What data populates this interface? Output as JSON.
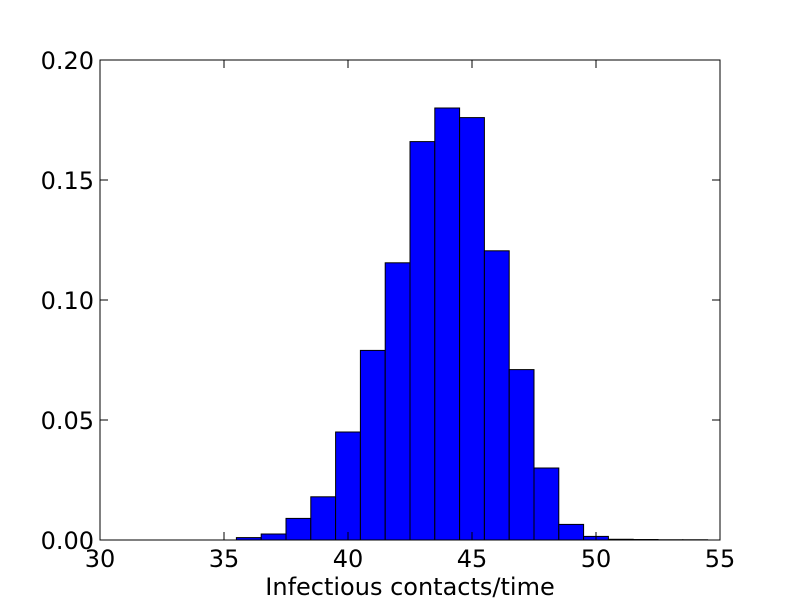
{
  "chart_data": {
    "type": "bar",
    "title": "",
    "xlabel": "Infectious contacts/time",
    "ylabel": "",
    "xlim": [
      30,
      55
    ],
    "ylim": [
      0,
      0.2
    ],
    "x_ticks": [
      "30",
      "35",
      "40",
      "45",
      "50",
      "55"
    ],
    "y_ticks": [
      "0.00",
      "0.05",
      "0.10",
      "0.15",
      "0.20"
    ],
    "bar_color": "#0000ff",
    "edge_color": "#000000",
    "grid": false,
    "bins": [
      {
        "x0": 35.5,
        "x1": 36.5,
        "value": 0.001
      },
      {
        "x0": 36.5,
        "x1": 37.5,
        "value": 0.0025
      },
      {
        "x0": 37.5,
        "x1": 38.5,
        "value": 0.009
      },
      {
        "x0": 38.5,
        "x1": 39.5,
        "value": 0.018
      },
      {
        "x0": 39.5,
        "x1": 40.5,
        "value": 0.045
      },
      {
        "x0": 40.5,
        "x1": 41.5,
        "value": 0.079
      },
      {
        "x0": 41.5,
        "x1": 42.5,
        "value": 0.1155
      },
      {
        "x0": 42.5,
        "x1": 43.5,
        "value": 0.166
      },
      {
        "x0": 43.5,
        "x1": 44.5,
        "value": 0.18
      },
      {
        "x0": 44.5,
        "x1": 45.5,
        "value": 0.176
      },
      {
        "x0": 45.5,
        "x1": 46.5,
        "value": 0.1205
      },
      {
        "x0": 46.5,
        "x1": 47.5,
        "value": 0.071
      },
      {
        "x0": 47.5,
        "x1": 48.5,
        "value": 0.03
      },
      {
        "x0": 48.5,
        "x1": 49.5,
        "value": 0.0065
      },
      {
        "x0": 49.5,
        "x1": 50.5,
        "value": 0.0015
      },
      {
        "x0": 50.5,
        "x1": 51.5,
        "value": 0.0003
      },
      {
        "x0": 51.5,
        "x1": 52.5,
        "value": 0.0002
      },
      {
        "x0": 52.5,
        "x1": 53.5,
        "value": 0.0001
      },
      {
        "x0": 53.5,
        "x1": 54.5,
        "value": 0.0001
      }
    ]
  }
}
